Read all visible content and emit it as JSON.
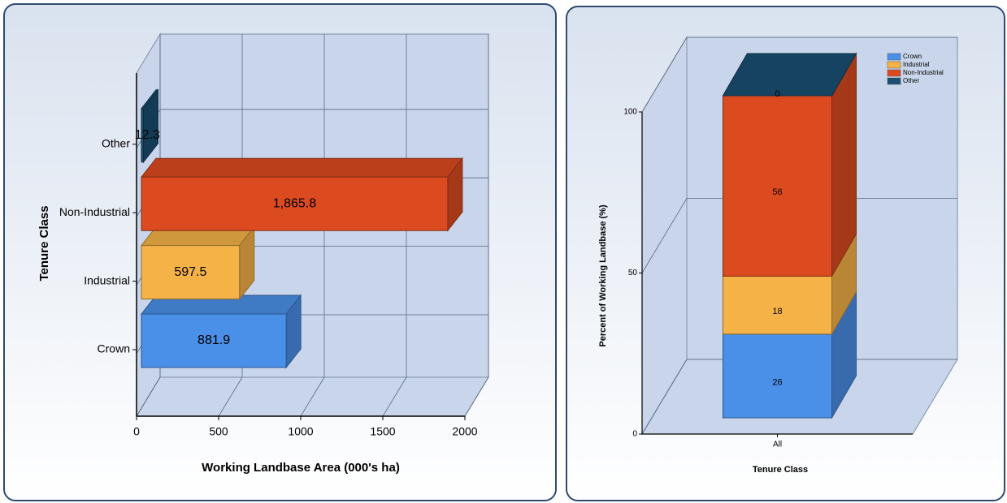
{
  "chart_data": [
    {
      "type": "barh",
      "categories": [
        "Crown",
        "Industrial",
        "Non-Industrial",
        "Other"
      ],
      "values": [
        881.9,
        597.5,
        1865.8,
        12.3
      ],
      "value_labels": [
        "881.9",
        "597.5",
        "1,865.8",
        "12.3"
      ],
      "colors": [
        "#4a8fe8",
        "#f5b347",
        "#dc4a20",
        "#1a4f72"
      ],
      "xlim": [
        0,
        2000
      ],
      "xticks": [
        0,
        500,
        1000,
        1500,
        2000
      ],
      "xlabel": "Working Landbase Area (000's ha)",
      "ylabel": "Tenure Class",
      "grid": true
    },
    {
      "type": "stackedbar",
      "categories": [
        "All"
      ],
      "series": [
        {
          "name": "Crown",
          "color": "#4a8fe8",
          "values": [
            26
          ]
        },
        {
          "name": "Industrial",
          "color": "#f5b347",
          "values": [
            18
          ]
        },
        {
          "name": "Non-Industrial",
          "color": "#dc4a20",
          "values": [
            56
          ]
        },
        {
          "name": "Other",
          "color": "#1a4f72",
          "values": [
            0
          ]
        }
      ],
      "ylim": [
        0,
        100
      ],
      "yticks": [
        0,
        50,
        100
      ],
      "xlabel": "Tenure Class",
      "ylabel": "Percent of Working Landbase (%)",
      "legend": "top-right",
      "grid": true
    }
  ]
}
